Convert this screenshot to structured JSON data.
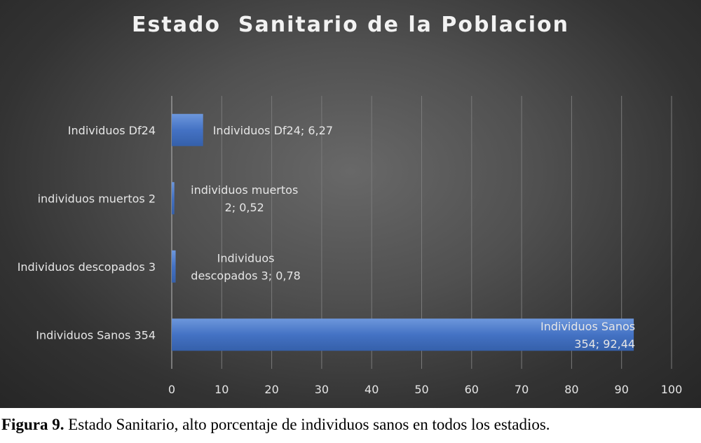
{
  "chart_data": {
    "type": "bar",
    "orientation": "horizontal",
    "title": "Estado  Sanitario de la Poblacion",
    "categories": [
      "Individuos Df24",
      "individuos muertos 2",
      "Individuos descopados 3",
      "Individuos Sanos 354"
    ],
    "values": [
      6.27,
      0.52,
      0.78,
      92.44
    ],
    "data_labels": [
      [
        "Individuos Df24; 6,27"
      ],
      [
        "individuos muertos",
        "2; 0,52"
      ],
      [
        "Individuos",
        "descopados 3; 0,78"
      ],
      [
        "Individuos Sanos",
        "354; 92,44"
      ]
    ],
    "xlim": [
      0,
      100
    ],
    "xticks": [
      0,
      10,
      20,
      30,
      40,
      50,
      60,
      70,
      80,
      90,
      100
    ],
    "xlabel": "",
    "ylabel": "",
    "grid": "vertical",
    "legend": "none",
    "colors": {
      "bar": "#4472c4",
      "bar_light": "#5b8ad6",
      "bar_dark": "#2f5597",
      "text": "#e6e6e6",
      "grid": "#7a7a7a"
    }
  },
  "caption": {
    "label": "Figura 9.",
    "text": " Estado Sanitario, alto porcentaje de individuos sanos en todos los estadios."
  }
}
